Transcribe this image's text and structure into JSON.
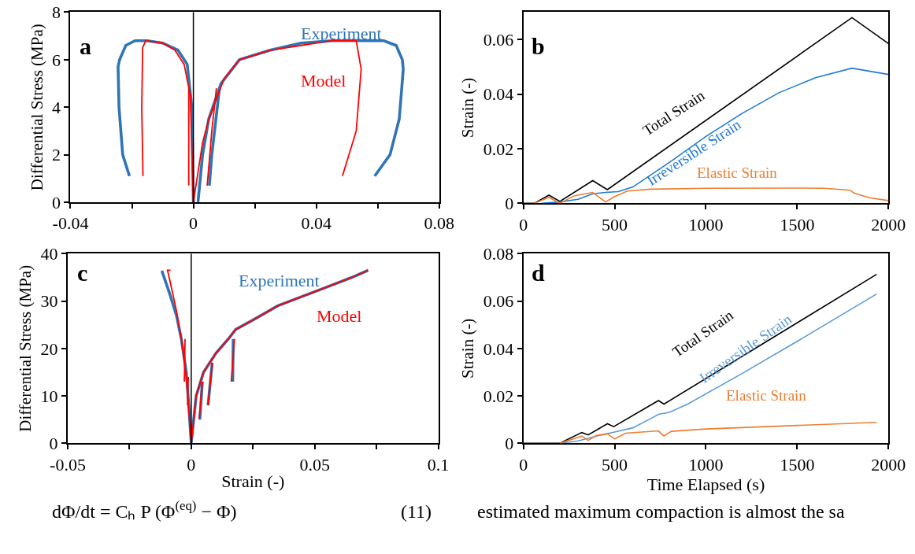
{
  "chart_data": [
    {
      "type": "line",
      "annotations": [
        "a"
      ],
      "ylabel": "Differential Stress (MPa)",
      "xlim": [
        -0.04,
        0.08
      ],
      "xticks": [
        -0.04,
        {
          "value": -0.02,
          "label": null
        },
        0,
        {
          "value": 0.02,
          "label": null
        },
        0.04,
        {
          "value": 0.06,
          "label": null
        },
        0.08
      ],
      "ylim": [
        0,
        8
      ],
      "yticks": [
        0,
        2,
        4,
        6,
        8
      ],
      "ref_lines": [
        {
          "axis": "x",
          "value": 0,
          "color": "#000000"
        }
      ],
      "series": [
        {
          "name": "Experiment",
          "color": "#2e75b6",
          "x": [
            0,
            -0.0005,
            -0.002,
            -0.005,
            -0.01,
            -0.015,
            -0.019,
            -0.022,
            -0.024,
            -0.0245,
            -0.0242,
            -0.023,
            -0.0208,
            null,
            0.0015,
            0.003,
            0.005,
            0.009,
            0.015,
            0.025,
            0.035,
            0.045,
            0.055,
            0.062,
            0.066,
            0.068,
            0.0683,
            0.067,
            0.064,
            0.059,
            null,
            0.0085,
            0.006,
            0.0052
          ],
          "values": [
            0,
            4,
            5.8,
            6.4,
            6.7,
            6.8,
            6.8,
            6.6,
            6,
            5.7,
            4,
            2,
            1.1,
            null,
            0,
            2,
            3.5,
            5,
            6,
            6.4,
            6.7,
            6.8,
            6.8,
            6.8,
            6.6,
            6,
            5.6,
            3.5,
            2,
            1.1,
            null,
            4.8,
            2,
            0.7
          ]
        },
        {
          "name": "Model",
          "color": "#ff0000",
          "x": [
            0,
            -0.001,
            -0.003,
            -0.006,
            -0.01,
            -0.0155,
            -0.0165,
            -0.0168,
            -0.0164,
            null,
            -0.0015,
            -0.0015,
            null,
            0,
            0.003,
            0.005,
            0.01,
            0.015,
            0.025,
            0.035,
            0.045,
            0.053,
            0.0546,
            0.053,
            0.0485,
            null,
            0.0075,
            0.006,
            0.0045
          ],
          "values": [
            0,
            4.5,
            5.8,
            6.4,
            6.7,
            6.8,
            6.5,
            4,
            1.1,
            null,
            4.8,
            0.7,
            null,
            0,
            2.5,
            3.5,
            5.2,
            6,
            6.4,
            6.6,
            6.8,
            6.8,
            5.6,
            3,
            1.1,
            null,
            4.8,
            3,
            0.7
          ]
        }
      ]
    },
    {
      "type": "line",
      "annotations": [
        "b"
      ],
      "ylabel": "Strain (-)",
      "xlim": [
        0,
        2000
      ],
      "xticks": [
        0,
        500,
        1000,
        1500,
        2000
      ],
      "ylim": [
        0,
        0.07
      ],
      "yticks": [
        0,
        0.02,
        0.04,
        0.06
      ],
      "series": [
        {
          "name": "Total Strain",
          "color": "#000000",
          "x": [
            0,
            60,
            140,
            200,
            380,
            460,
            1800,
            2000
          ],
          "values": [
            0,
            0,
            0.003,
            0.0007,
            0.0083,
            0.005,
            0.068,
            0.0585
          ]
        },
        {
          "name": "Irreversible Strain",
          "color": "#1f7ad6",
          "x": [
            100,
            200,
            300,
            380,
            450,
            520,
            600,
            800,
            1000,
            1200,
            1400,
            1600,
            1800,
            2000
          ],
          "values": [
            0,
            0.0005,
            0.0015,
            0.0035,
            0.004,
            0.0043,
            0.006,
            0.015,
            0.0245,
            0.033,
            0.0405,
            0.046,
            0.0495,
            0.0472
          ]
        },
        {
          "name": "Elastic Strain",
          "color": "#ed7d31",
          "x": [
            60,
            140,
            200,
            280,
            380,
            450,
            500,
            570,
            700,
            1000,
            1500,
            1650,
            1790,
            1810,
            1900,
            2000
          ],
          "values": [
            0,
            0.0022,
            0,
            0.0028,
            0.004,
            0.0005,
            0.0025,
            0.0045,
            0.0052,
            0.0055,
            0.0056,
            0.0055,
            0.0048,
            0.0038,
            0.002,
            0.001
          ]
        }
      ]
    },
    {
      "type": "line",
      "annotations": [
        "c",
        "dΦ/dt = Cₕ P (Φ$^{(eq)}$ − Φ)",
        "(11)"
      ],
      "xlabel": "Strain (-)",
      "ylabel": "Differential Stress (MPa)",
      "xlim": [
        -0.05,
        0.1
      ],
      "xticks": [
        -0.05,
        {
          "value": -0.025,
          "label": null
        },
        0,
        {
          "value": 0.025,
          "label": null
        },
        0.05,
        {
          "value": 0.075,
          "label": null
        },
        0.1
      ],
      "ylim": [
        0,
        40
      ],
      "yticks": [
        0,
        10,
        20,
        30,
        40
      ],
      "ref_lines": [
        {
          "axis": "x",
          "value": 0,
          "color": "#000000"
        }
      ],
      "series": [
        {
          "name": "Experiment",
          "color": "#2e75b6",
          "x": [
            -0.0119,
            -0.009,
            -0.006,
            -0.004,
            -0.002,
            -0.001,
            0,
            0.002,
            0.005,
            0.01,
            0.015,
            0.018,
            0.025,
            0.035,
            0.045,
            0.055,
            0.065,
            0.0716,
            null,
            0.0085,
            0.0068,
            null,
            0.017,
            0.0168,
            null,
            0.0045,
            0.0035
          ],
          "values": [
            36.4,
            32,
            27,
            22,
            15,
            8,
            0,
            10,
            15,
            19,
            22,
            24,
            26,
            29,
            31,
            33,
            35,
            36.5,
            null,
            17,
            8,
            null,
            22,
            13,
            null,
            13,
            5
          ]
        },
        {
          "name": "Model",
          "color": "#ff0000",
          "x": [
            -0.0084,
            -0.0096,
            -0.0085,
            -0.006,
            -0.004,
            -0.002,
            -0.001,
            0,
            0.002,
            0.005,
            0.01,
            0.015,
            0.018,
            0.025,
            0.035,
            0.045,
            0.055,
            0.065,
            0.0716,
            null,
            -0.0025,
            -0.0028,
            null,
            -0.0012,
            -0.0015,
            null,
            0.0085,
            0.0068,
            null,
            0.0175,
            0.0162,
            null,
            0.0045,
            0.0032
          ],
          "values": [
            36.5,
            36.5,
            34,
            28,
            22,
            14,
            7,
            0,
            10,
            15,
            19,
            22,
            24,
            26,
            29,
            31,
            33,
            35,
            36.5,
            null,
            22,
            13,
            null,
            14,
            8,
            null,
            17,
            8,
            null,
            22,
            13,
            null,
            13,
            5
          ]
        }
      ]
    },
    {
      "type": "line",
      "annotations": [
        "d",
        "estimated maximum compaction is almost the sa"
      ],
      "xlabel": "Time Elapsed (s)",
      "ylabel": "Strain (-)",
      "xlim": [
        0,
        2000
      ],
      "xticks": [
        0,
        500,
        1000,
        1500,
        2000
      ],
      "ylim": [
        0,
        0.08
      ],
      "yticks": [
        0,
        0.02,
        0.04,
        0.06,
        0.08
      ],
      "series": [
        {
          "name": "Total Strain",
          "color": "#000000",
          "x": [
            0,
            200,
            320,
            355,
            460,
            495,
            740,
            770,
            1935
          ],
          "values": [
            0,
            0,
            0.0045,
            0.0035,
            0.0082,
            0.007,
            0.018,
            0.0165,
            0.0713
          ]
        },
        {
          "name": "Irreversible Strain",
          "color": "#5b9bd5",
          "x": [
            200,
            300,
            400,
            500,
            600,
            700,
            740,
            800,
            900,
            1200,
            1500,
            1935
          ],
          "values": [
            0,
            0.001,
            0.003,
            0.0047,
            0.0065,
            0.0105,
            0.0122,
            0.013,
            0.0165,
            0.0295,
            0.043,
            0.063
          ]
        },
        {
          "name": "Elastic Strain",
          "color": "#ed7d31",
          "x": [
            200,
            320,
            355,
            400,
            460,
            500,
            560,
            740,
            770,
            810,
            1000,
            1500,
            1935
          ],
          "values": [
            0,
            0.003,
            0.0012,
            0.0033,
            0.004,
            0.0018,
            0.0042,
            0.0052,
            0.003,
            0.005,
            0.006,
            0.0075,
            0.0088
          ]
        }
      ]
    }
  ]
}
